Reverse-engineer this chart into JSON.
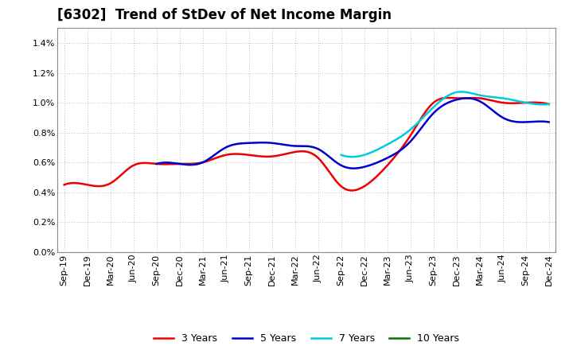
{
  "title": "[6302]  Trend of StDev of Net Income Margin",
  "x_labels": [
    "Sep-19",
    "Dec-19",
    "Mar-20",
    "Jun-20",
    "Sep-20",
    "Dec-20",
    "Mar-21",
    "Jun-21",
    "Sep-21",
    "Dec-21",
    "Mar-22",
    "Jun-22",
    "Sep-22",
    "Dec-22",
    "Mar-23",
    "Jun-23",
    "Sep-23",
    "Dec-23",
    "Mar-24",
    "Jun-24",
    "Sep-24",
    "Dec-24"
  ],
  "y_ticks": [
    0.0,
    0.002,
    0.004,
    0.006,
    0.008,
    0.01,
    0.012,
    0.014
  ],
  "ylim": [
    0.0,
    0.015
  ],
  "series": {
    "3 Years": {
      "color": "#ee0000",
      "linewidth": 1.8,
      "values": [
        0.0045,
        0.0045,
        0.0046,
        0.0058,
        0.0059,
        0.0059,
        0.006,
        0.0065,
        0.0065,
        0.0064,
        0.0067,
        0.0063,
        0.0044,
        0.0044,
        0.0058,
        0.0078,
        0.01,
        0.0103,
        0.0103,
        0.01,
        0.01,
        0.0099
      ]
    },
    "5 Years": {
      "color": "#0000cc",
      "linewidth": 1.8,
      "values": [
        null,
        null,
        null,
        null,
        0.0059,
        0.0059,
        0.006,
        0.007,
        0.0073,
        0.0073,
        0.0071,
        0.0069,
        0.0058,
        0.0057,
        0.0063,
        0.0074,
        0.0093,
        0.0102,
        0.0101,
        0.009,
        0.0087,
        0.0087
      ]
    },
    "7 Years": {
      "color": "#00ccdd",
      "linewidth": 1.8,
      "values": [
        null,
        null,
        null,
        null,
        null,
        null,
        null,
        null,
        null,
        null,
        null,
        null,
        0.0065,
        0.0065,
        0.0072,
        0.0082,
        0.0097,
        0.0107,
        0.0105,
        0.0103,
        0.01,
        0.0099
      ]
    },
    "10 Years": {
      "color": "#007700",
      "linewidth": 1.8,
      "values": [
        null,
        null,
        null,
        null,
        null,
        null,
        null,
        null,
        null,
        null,
        null,
        null,
        null,
        null,
        null,
        null,
        null,
        null,
        null,
        null,
        null,
        null
      ]
    }
  },
  "legend_order": [
    "3 Years",
    "5 Years",
    "7 Years",
    "10 Years"
  ],
  "background_color": "#ffffff",
  "grid_color": "#bbbbbb",
  "title_fontsize": 12,
  "tick_fontsize": 8
}
